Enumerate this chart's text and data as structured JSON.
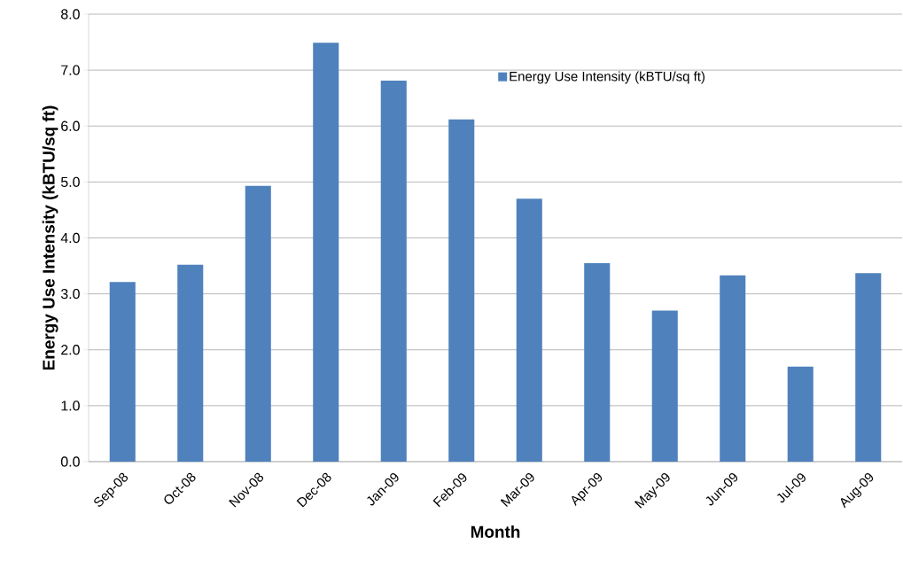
{
  "chart_data": {
    "type": "bar",
    "xlabel": "Month",
    "ylabel": "Energy Use Intensity (kBTU/sq ft)",
    "categories": [
      "Sep-08",
      "Oct-08",
      "Nov-08",
      "Dec-08",
      "Jan-09",
      "Feb-09",
      "Mar-09",
      "Apr-09",
      "May-09",
      "Jun-09",
      "Jul-09",
      "Aug-09"
    ],
    "series": [
      {
        "name": "Energy Use Intensity  (kBTU/sq ft)",
        "color": "#4f81bd",
        "values": [
          3.21,
          3.52,
          4.93,
          7.49,
          6.81,
          6.12,
          4.7,
          3.55,
          2.7,
          3.33,
          1.7,
          3.37
        ]
      }
    ],
    "ylim": [
      0,
      8
    ],
    "yticks": [
      {
        "value": 0,
        "label": "0.0"
      },
      {
        "value": 1,
        "label": "1.0"
      },
      {
        "value": 2,
        "label": "2.0"
      },
      {
        "value": 3,
        "label": "3.0"
      },
      {
        "value": 4,
        "label": "4.0"
      },
      {
        "value": 5,
        "label": "5.0"
      },
      {
        "value": 6,
        "label": "6.0"
      },
      {
        "value": 7,
        "label": "7.0"
      },
      {
        "value": 8,
        "label": "8.0"
      }
    ],
    "grid": "y",
    "legend": "top right"
  }
}
